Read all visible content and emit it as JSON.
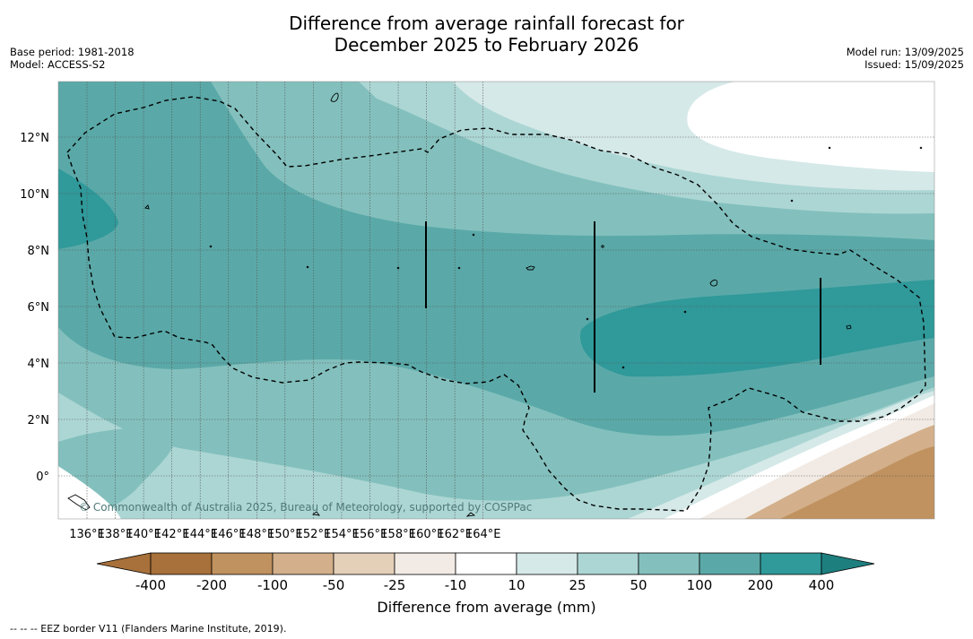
{
  "title": {
    "line1": "Difference from average rainfall forecast for",
    "line2": "December 2025 to February 2026"
  },
  "meta_left": {
    "base_period": "Base period: 1981-2018",
    "model": "Model: ACCESS-S2"
  },
  "meta_right": {
    "model_run": "Model run: 13/09/2025",
    "issued": "Issued: 15/09/2025"
  },
  "map": {
    "lon_ticks": [
      "136°E",
      "138°E",
      "140°E",
      "142°E",
      "144°E",
      "146°E",
      "148°E",
      "150°E",
      "152°E",
      "154°E",
      "156°E",
      "158°E",
      "160°E",
      "162°E",
      "164°E"
    ],
    "lat_ticks": [
      "12°N",
      "10°N",
      "8°N",
      "6°N",
      "4°N",
      "2°N",
      "0°"
    ],
    "copyright": "© Commonwealth of Australia 2025, Bureau of Meteorology, supported by COSPPac",
    "colors": {
      "dry_400": "#a8703a",
      "dry_200": "#c0925f",
      "dry_100": "#d3b08b",
      "dry_50": "#e4cfb9",
      "dry_25": "#f2ebe5",
      "neutral": "#ffffff",
      "wet_10": "#d5e9e8",
      "wet_25": "#acd6d4",
      "wet_50": "#83c0bd",
      "wet_100": "#5aa9a8",
      "wet_200": "#30999a",
      "wet_400": "#1e7f7f"
    }
  },
  "colorbar": {
    "tick_labels": [
      "-400",
      "-200",
      "-100",
      "-50",
      "-25",
      "-10",
      "10",
      "25",
      "50",
      "100",
      "200",
      "400"
    ],
    "label": "Difference from average (mm)"
  },
  "footnote": "--  --  -- EEZ border V11 (Flanders Marine Institute, 2019)."
}
